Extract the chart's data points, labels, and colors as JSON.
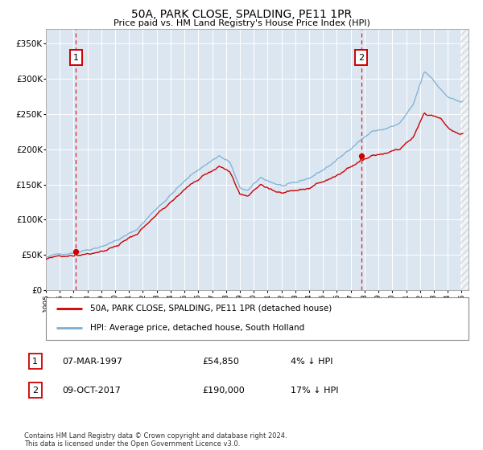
{
  "title": "50A, PARK CLOSE, SPALDING, PE11 1PR",
  "subtitle": "Price paid vs. HM Land Registry's House Price Index (HPI)",
  "legend_entries": [
    "50A, PARK CLOSE, SPALDING, PE11 1PR (detached house)",
    "HPI: Average price, detached house, South Holland"
  ],
  "annotation1": {
    "label": "1",
    "date": "07-MAR-1997",
    "price": "£54,850",
    "hpi_diff": "4% ↓ HPI"
  },
  "annotation2": {
    "label": "2",
    "date": "09-OCT-2017",
    "price": "£190,000",
    "hpi_diff": "17% ↓ HPI"
  },
  "footnote": "Contains HM Land Registry data © Crown copyright and database right 2024.\nThis data is licensed under the Open Government Licence v3.0.",
  "hpi_color": "#7bafd4",
  "price_color": "#cc0000",
  "background_color": "#dce6f1",
  "grid_color": "#ffffff",
  "annotation_line_color": "#dd2222",
  "ylim": [
    0,
    370000
  ],
  "xlim_start": 1995.0,
  "xlim_end": 2025.5,
  "yticks": [
    0,
    50000,
    100000,
    150000,
    200000,
    250000,
    300000,
    350000
  ],
  "ylabels": [
    "£0",
    "£50K",
    "£100K",
    "£150K",
    "£200K",
    "£250K",
    "£300K",
    "£350K"
  ]
}
